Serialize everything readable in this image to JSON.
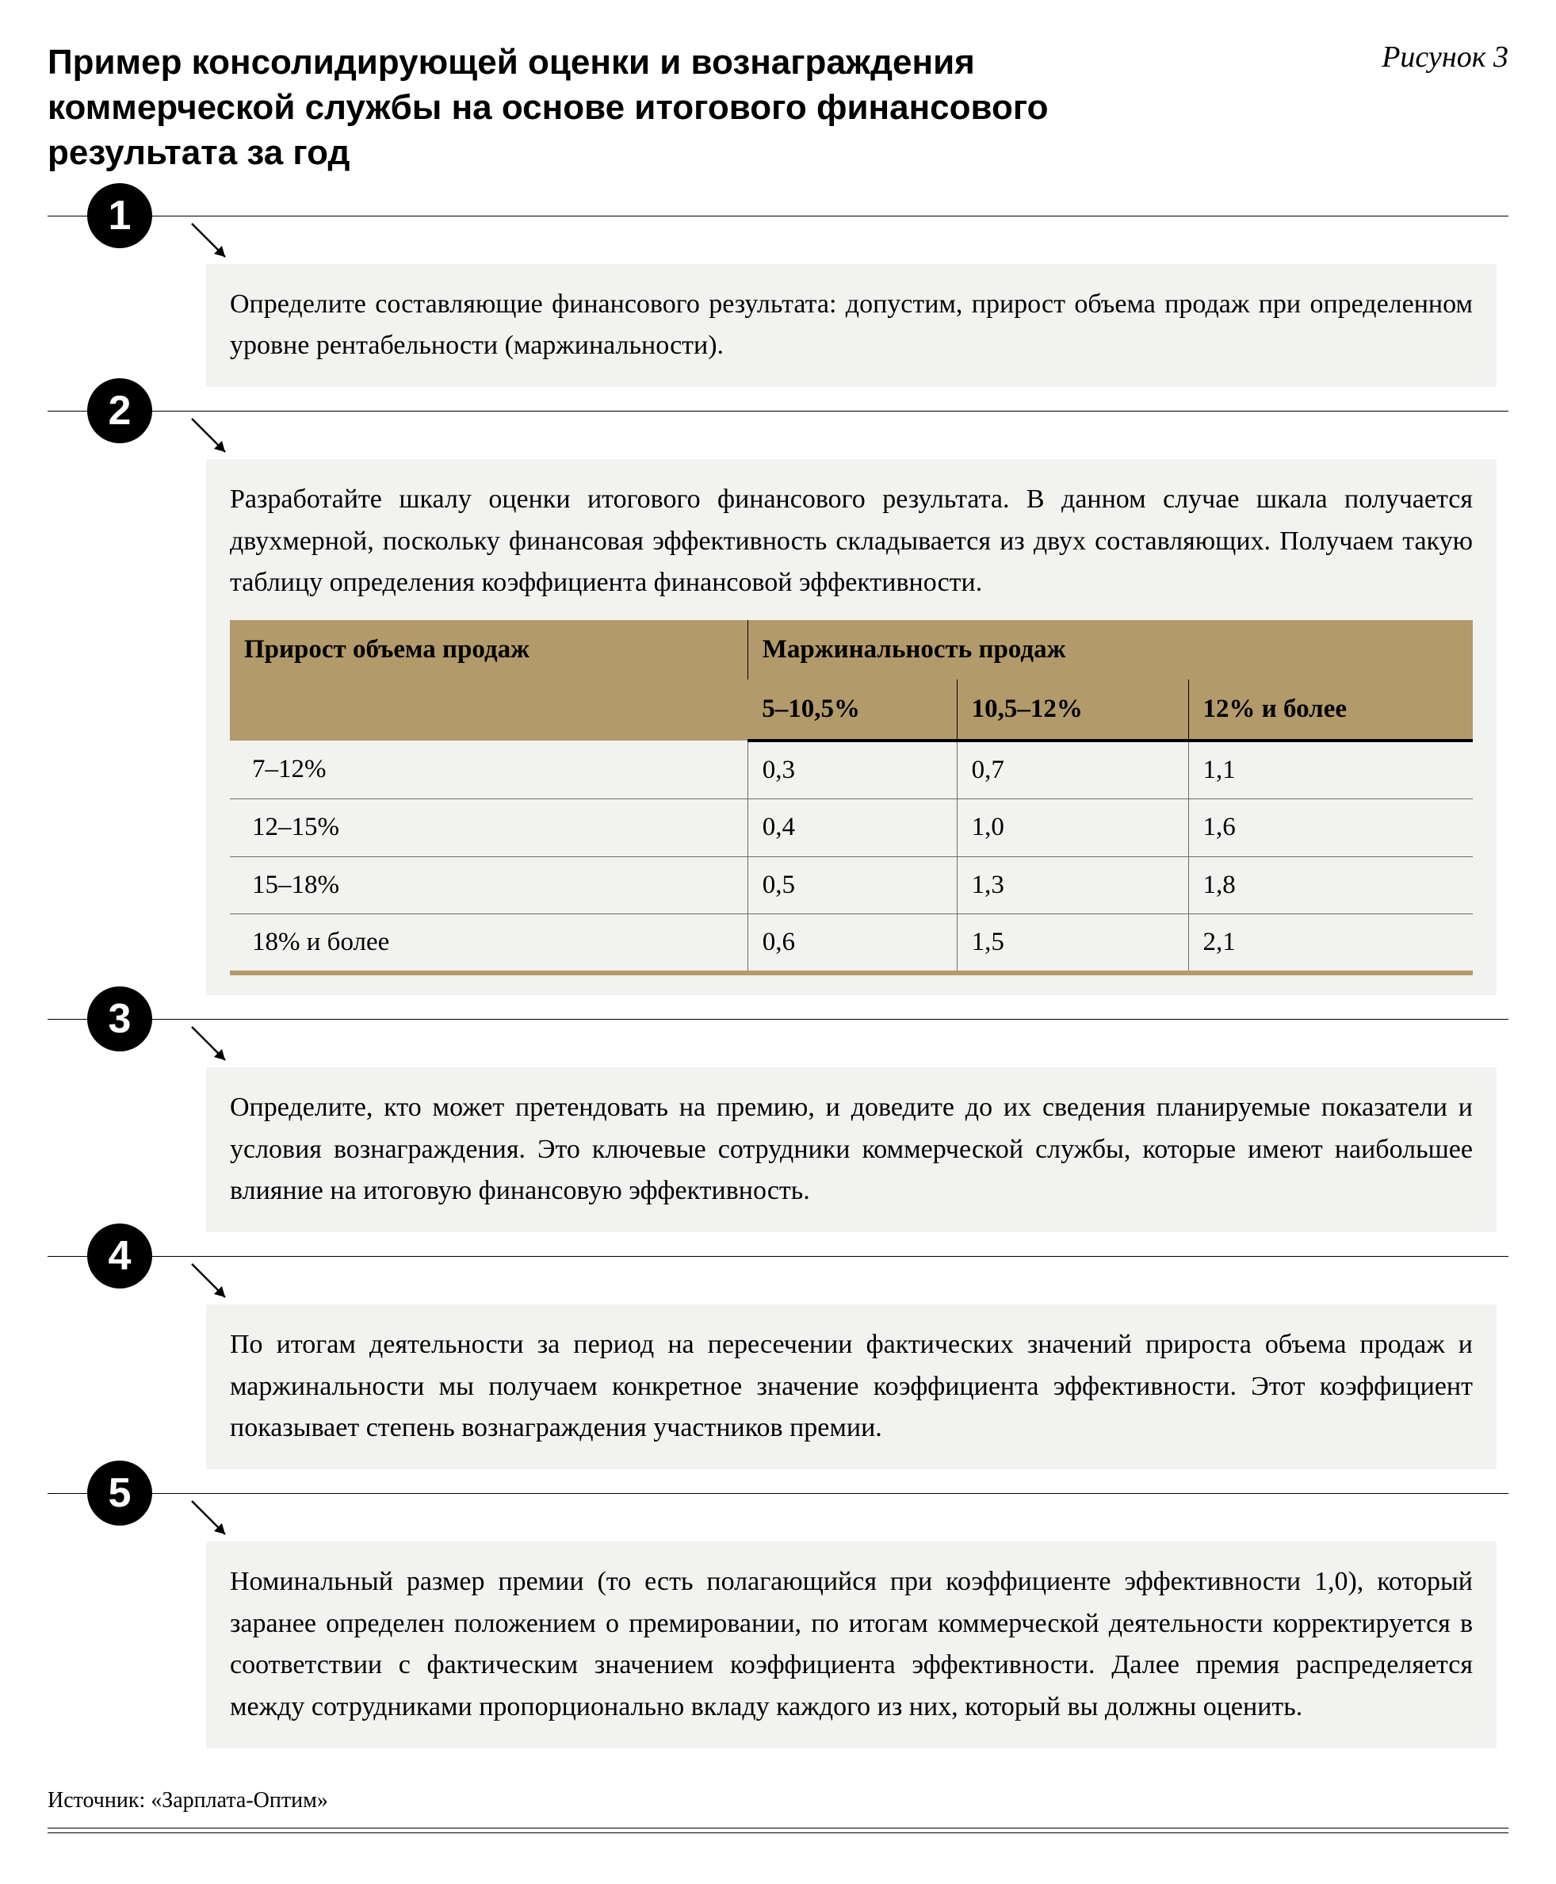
{
  "header": {
    "title": "Пример консолидирующей оценки и вознаграждения коммерческой службы на основе итогового финансового результата за год",
    "figure_label": "Рисунок 3"
  },
  "steps": [
    {
      "num": "1",
      "text": "Определите составляющие финансового результата: допустим, прирост объема продаж при определенном уровне рентабельности (маржинальности).",
      "has_table": false
    },
    {
      "num": "2",
      "text": "Разработайте шкалу оценки итогового финансового результата. В данном случае шкала получается двухмерной, поскольку финансовая эффективность складывается из двух составляющих. Получаем такую таблицу определения коэффициента финансовой эффективности.",
      "has_table": true
    },
    {
      "num": "3",
      "text": "Определите, кто может претендовать на премию, и доведите до их сведения планируемые показатели и условия вознаграждения. Это ключевые сотрудники коммерческой службы, которые имеют наибольшее влияние на итоговую финансовую эффективность.",
      "has_table": false
    },
    {
      "num": "4",
      "text": "По итогам деятельности за период на пересечении фактических значений прироста объема продаж и маржинальности мы получаем конкретное значение коэффициента эффективности. Этот коэффициент показывает степень вознаграждения участников премии.",
      "has_table": false
    },
    {
      "num": "5",
      "text": "Номинальный размер премии (то есть полагающийся при коэффициенте эффективности 1,0), который заранее определен положением о премировании, по итогам коммерческой деятельности корректируется в соответствии с фактическим значением коэффициента эффективности. Далее премия распределяется между сотрудниками пропорционально вкладу каждого из них, который вы должны оценить.",
      "has_table": false
    }
  ],
  "table": {
    "row_header": "Прирост объема продаж",
    "col_group_header": "Маржинальность продаж",
    "col_headers": [
      "5–10,5%",
      "10,5–12%",
      "12% и более"
    ],
    "rows": [
      {
        "label": "7–12%",
        "cells": [
          "0,3",
          "0,7",
          "1,1"
        ]
      },
      {
        "label": "12–15%",
        "cells": [
          "0,4",
          "1,0",
          "1,6"
        ]
      },
      {
        "label": "15–18%",
        "cells": [
          "0,5",
          "1,3",
          "1,8"
        ]
      },
      {
        "label": "18% и более",
        "cells": [
          "0,6",
          "1,5",
          "2,1"
        ]
      }
    ],
    "colors": {
      "header_bg": "#b29a6b",
      "body_bg": "#f2f2f0",
      "rule": "#000000"
    }
  },
  "source": "Источник: «Зарплата-Оптим»",
  "styling": {
    "badge_bg": "#000000",
    "badge_fg": "#ffffff",
    "body_bg": "#f2f2f0",
    "page_bg": "#ffffff",
    "title_fontsize": 44,
    "body_fontsize": 34
  }
}
